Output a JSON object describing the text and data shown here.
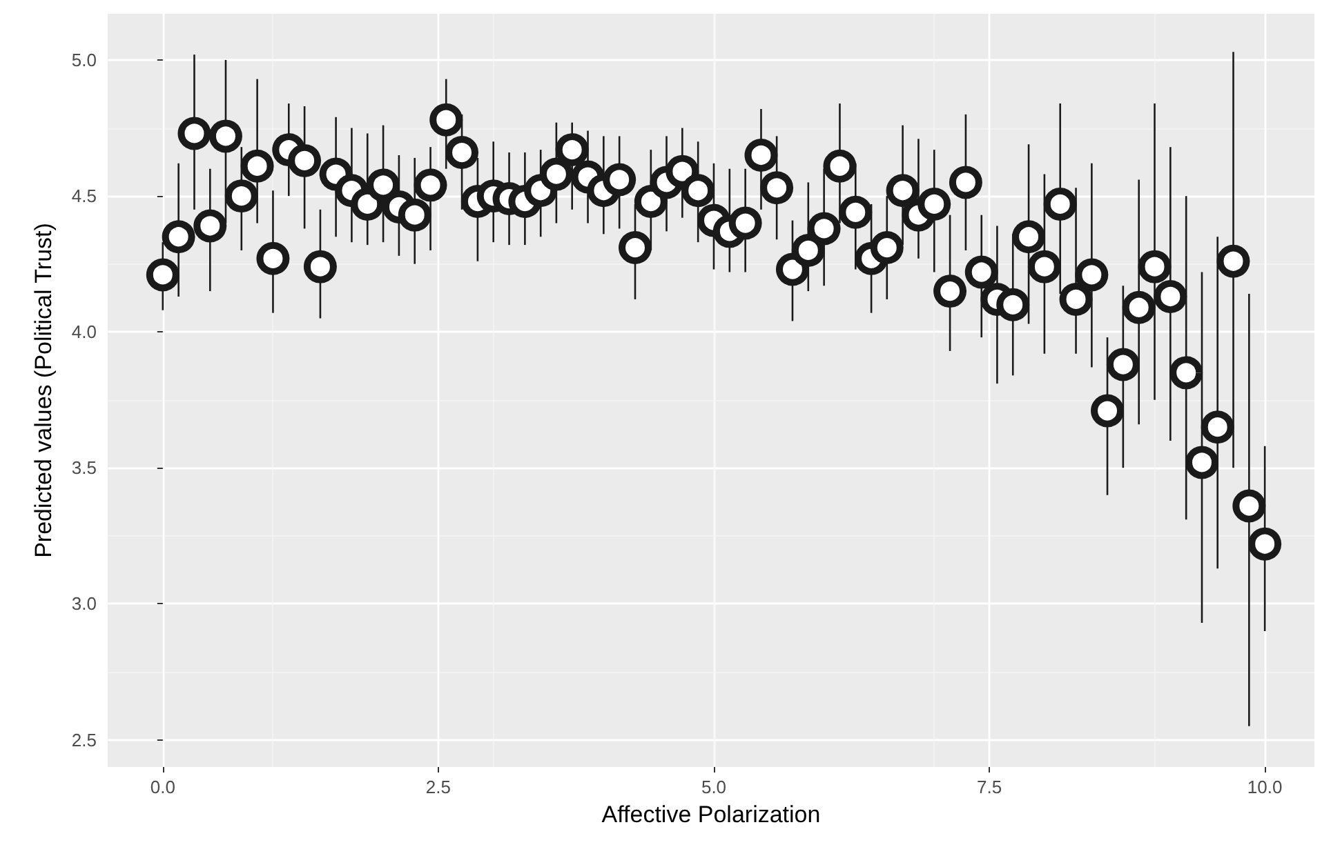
{
  "chart_data": {
    "type": "scatter",
    "xlabel": "Affective Polarization",
    "ylabel": "Predicted values (Political Trust)",
    "x": [
      0,
      0.143,
      0.286,
      0.429,
      0.571,
      0.714,
      0.857,
      1,
      1.143,
      1.286,
      1.429,
      1.571,
      1.714,
      1.857,
      2,
      2.143,
      2.286,
      2.429,
      2.571,
      2.714,
      2.857,
      3,
      3.143,
      3.286,
      3.429,
      3.571,
      3.714,
      3.857,
      4,
      4.143,
      4.286,
      4.429,
      4.571,
      4.714,
      4.857,
      5,
      5.143,
      5.286,
      5.429,
      5.571,
      5.714,
      5.857,
      6,
      6.143,
      6.286,
      6.429,
      6.571,
      6.714,
      6.857,
      7,
      7.143,
      7.286,
      7.429,
      7.571,
      7.714,
      7.857,
      8,
      8.143,
      8.286,
      8.429,
      8.571,
      8.714,
      8.857,
      9,
      9.143,
      9.286,
      9.429,
      9.571,
      9.714,
      9.857,
      10
    ],
    "series": [
      {
        "color": "#1a1a1a",
        "values": [
          4.21,
          4.35,
          4.73,
          4.39,
          4.72,
          4.5,
          4.61,
          4.27,
          4.67,
          4.63,
          4.24,
          4.58,
          4.52,
          4.47,
          4.54,
          4.46,
          4.43,
          4.54,
          4.78,
          4.66,
          4.48,
          4.5,
          4.49,
          4.48,
          4.52,
          4.58,
          4.67,
          4.57,
          4.52,
          4.56,
          4.31,
          4.48,
          4.55,
          4.59,
          4.52,
          4.41,
          4.37,
          4.4,
          4.65,
          4.53,
          4.23,
          4.3,
          4.38,
          4.61,
          4.44,
          4.27,
          4.31,
          4.52,
          4.43,
          4.47,
          4.15,
          4.55,
          4.22,
          4.12,
          4.1,
          4.35,
          4.24,
          4.47,
          4.12,
          4.21,
          3.71,
          3.88,
          4.09,
          4.24,
          4.13,
          3.85,
          3.52,
          3.65,
          4.26,
          3.36,
          3.22
        ],
        "errors": [
          [
            4.08,
            4.33
          ],
          [
            4.13,
            4.62
          ],
          [
            4.45,
            5.02
          ],
          [
            4.15,
            4.6
          ],
          [
            4.4,
            5.0
          ],
          [
            4.3,
            4.68
          ],
          [
            4.4,
            4.93
          ],
          [
            4.07,
            4.52
          ],
          [
            4.5,
            4.84
          ],
          [
            4.38,
            4.83
          ],
          [
            4.05,
            4.45
          ],
          [
            4.35,
            4.79
          ],
          [
            4.33,
            4.75
          ],
          [
            4.32,
            4.73
          ],
          [
            4.33,
            4.76
          ],
          [
            4.28,
            4.65
          ],
          [
            4.25,
            4.64
          ],
          [
            4.3,
            4.68
          ],
          [
            4.6,
            4.93
          ],
          [
            4.45,
            4.8
          ],
          [
            4.26,
            4.64
          ],
          [
            4.33,
            4.7
          ],
          [
            4.32,
            4.66
          ],
          [
            4.32,
            4.66
          ],
          [
            4.35,
            4.67
          ],
          [
            4.4,
            4.77
          ],
          [
            4.45,
            4.77
          ],
          [
            4.4,
            4.74
          ],
          [
            4.36,
            4.72
          ],
          [
            4.38,
            4.72
          ],
          [
            4.12,
            4.47
          ],
          [
            4.3,
            4.67
          ],
          [
            4.37,
            4.72
          ],
          [
            4.42,
            4.75
          ],
          [
            4.33,
            4.7
          ],
          [
            4.23,
            4.62
          ],
          [
            4.22,
            4.6
          ],
          [
            4.22,
            4.6
          ],
          [
            4.45,
            4.82
          ],
          [
            4.34,
            4.72
          ],
          [
            4.04,
            4.41
          ],
          [
            4.15,
            4.55
          ],
          [
            4.17,
            4.6
          ],
          [
            4.4,
            4.84
          ],
          [
            4.23,
            4.62
          ],
          [
            4.07,
            4.47
          ],
          [
            4.12,
            4.5
          ],
          [
            4.32,
            4.76
          ],
          [
            4.27,
            4.71
          ],
          [
            4.22,
            4.67
          ],
          [
            3.93,
            4.43
          ],
          [
            4.3,
            4.8
          ],
          [
            3.98,
            4.43
          ],
          [
            3.81,
            4.39
          ],
          [
            3.84,
            4.36
          ],
          [
            4.03,
            4.69
          ],
          [
            3.92,
            4.58
          ],
          [
            4.14,
            4.84
          ],
          [
            3.92,
            4.53
          ],
          [
            3.87,
            4.62
          ],
          [
            3.4,
            3.98
          ],
          [
            3.5,
            4.17
          ],
          [
            3.66,
            4.56
          ],
          [
            3.75,
            4.84
          ],
          [
            3.6,
            4.68
          ],
          [
            3.31,
            4.5
          ],
          [
            2.93,
            4.22
          ],
          [
            3.13,
            4.35
          ],
          [
            3.5,
            5.03
          ],
          [
            2.55,
            4.14
          ],
          [
            2.9,
            3.58
          ]
        ]
      }
    ],
    "xlim": [
      -0.5,
      10.45
    ],
    "xticks": [
      {
        "value": 0,
        "label": "0.0"
      },
      {
        "value": 2.5,
        "label": "2.5"
      },
      {
        "value": 5,
        "label": "5.0"
      },
      {
        "value": 7.5,
        "label": "7.5"
      },
      {
        "value": 10,
        "label": "10.0"
      }
    ],
    "ylim": [
      2.4,
      5.17
    ],
    "yticks": [
      {
        "value": 2.5,
        "label": "2.5"
      },
      {
        "value": 3,
        "label": "3.0"
      },
      {
        "value": 3.5,
        "label": "3.5"
      },
      {
        "value": 4,
        "label": "4.0"
      },
      {
        "value": 4.5,
        "label": "4.5"
      },
      {
        "value": 5,
        "label": "5.0"
      }
    ],
    "grid": true,
    "marker": "circle"
  }
}
